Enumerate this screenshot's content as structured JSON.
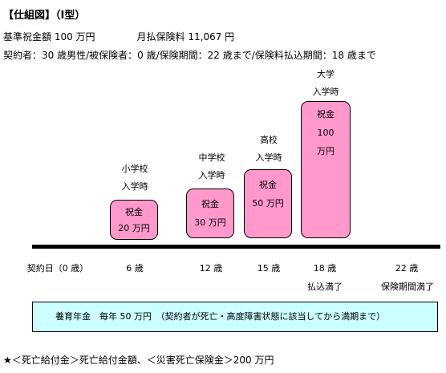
{
  "title": "【仕組図】（Ⅰ型）",
  "summary": {
    "base_amount": "基準祝金額 100 万円",
    "monthly_premium": "月払保険料 11,067 円"
  },
  "conditions": "契約者：30 歳男性/被保険者：0 歳/保険期間：22 歳まで/保険料払込期間：18 歳まで",
  "milestones": [
    {
      "caption1": "小学校",
      "caption2": "入学時",
      "box": [
        "祝金",
        "20 万円"
      ]
    },
    {
      "caption1": "中学校",
      "caption2": "入学時",
      "box": [
        "祝金",
        "30 万円"
      ]
    },
    {
      "caption1": "高校",
      "caption2": "入学時",
      "box": [
        "祝金",
        "50 万円"
      ]
    },
    {
      "caption1": "大学",
      "caption2": "入学時",
      "box": [
        "祝金",
        "100",
        "万円"
      ]
    }
  ],
  "timeline": {
    "ages": [
      "契約日（0 歳）",
      "6 歳",
      "12 歳",
      "15 歳",
      "18 歳",
      "22 歳"
    ],
    "sub_labels": [
      "払込満了",
      "保険期間満了"
    ]
  },
  "pension": "養育年金　毎年 50 万円　（契約者が死亡・高度障害状態に該当してから満期まで）",
  "footer": "★＜死亡給付金＞死亡給付金額、＜災害死亡保険金＞200 万円",
  "colors": {
    "box_fill": "#ff99cc",
    "pension_fill": "#ccffff"
  }
}
